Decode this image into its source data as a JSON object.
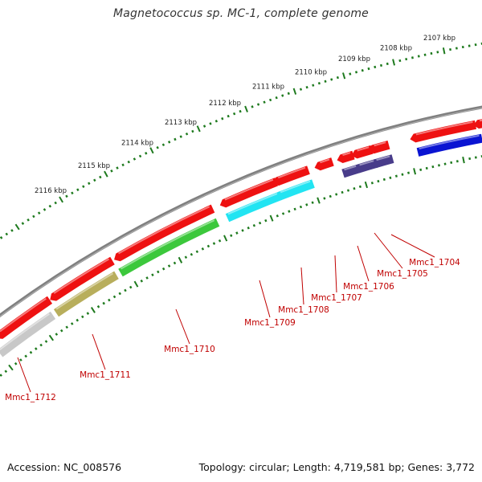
{
  "title": "Magnetococcus sp. MC-1, complete genome",
  "footer": {
    "accession": "Accession: NC_008576",
    "summary": "Topology: circular; Length: 4,719,581 bp; Genes: 3,772"
  },
  "scale": {
    "labels": [
      "2107 kbp",
      "2108 kbp",
      "2109 kbp",
      "2110 kbp",
      "2111 kbp",
      "2112 kbp",
      "2113 kbp",
      "2114 kbp",
      "2115 kbp",
      "2116 kbp"
    ]
  },
  "genes": [
    {
      "label": "Mmc1_1704",
      "color": "#0a14d2"
    },
    {
      "label": "Mmc1_1705",
      "color": "#483c8a"
    },
    {
      "label": "Mmc1_1706",
      "color": "#483c8a"
    },
    {
      "label": "Mmc1_1707",
      "color": "#483c8a"
    },
    {
      "label": "Mmc1_1708",
      "color": "#22e4f2"
    },
    {
      "label": "Mmc1_1709",
      "color": "#22e4f2"
    },
    {
      "label": "Mmc1_1710",
      "color": "#3cc83c"
    },
    {
      "label": "Mmc1_1711",
      "color": "#b8ae5c"
    },
    {
      "label": "Mmc1_1712",
      "color": "#c8c8c8"
    }
  ],
  "colors": {
    "cds": "#ee1111",
    "backbone": "#808080",
    "ticks": "#1e7a1e",
    "labels": "#c00000"
  }
}
